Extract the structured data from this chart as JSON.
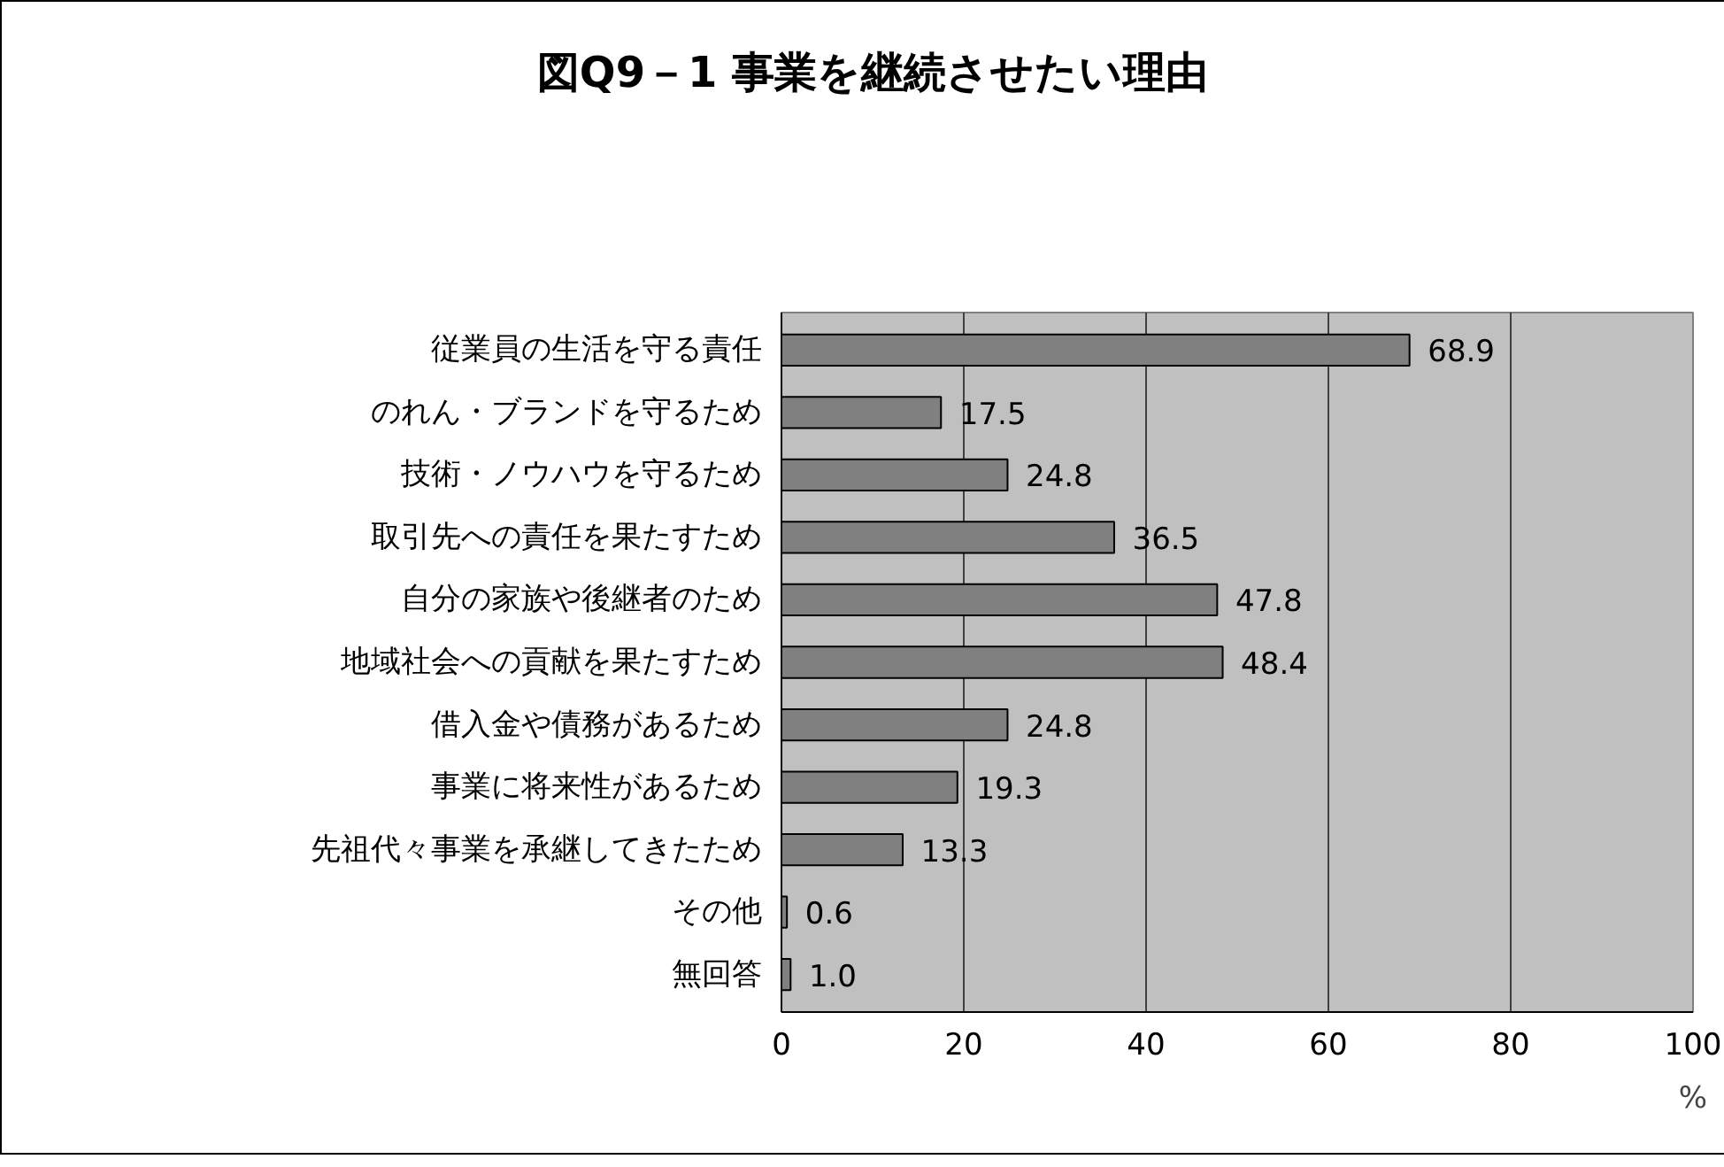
{
  "chart_data": {
    "type": "bar",
    "orientation": "horizontal",
    "title": "図Q9－1 事業を継続させたい理由",
    "xlabel": "%",
    "categories": [
      "従業員の生活を守る責任",
      "のれん・ブランドを守るため",
      "技術・ノウハウを守るため",
      "取引先への責任を果たすため",
      "自分の家族や後継者のため",
      "地域社会への貢献を果たすため",
      "借入金や債務があるため",
      "事業に将来性があるため",
      "先祖代々事業を承継してきたため",
      "その他",
      "無回答"
    ],
    "values": [
      68.9,
      17.5,
      24.8,
      36.5,
      47.8,
      48.4,
      24.8,
      19.3,
      13.3,
      0.6,
      1.0
    ],
    "value_labels": [
      "68.9",
      "17.5",
      "24.8",
      "36.5",
      "47.8",
      "48.4",
      "24.8",
      "19.3",
      "13.3",
      "0.6",
      "1.0"
    ],
    "color": "#808080",
    "xlim": [
      0,
      100
    ],
    "xticks": [
      0,
      20,
      40,
      60,
      80,
      100
    ],
    "grid": "x"
  }
}
